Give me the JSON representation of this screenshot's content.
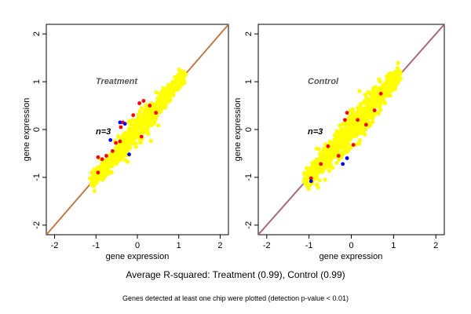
{
  "chart_data": [
    {
      "type": "scatter",
      "title": "Treatment",
      "annotation": "n=3",
      "xlabel": "gene expression",
      "ylabel": "gene expression",
      "xlim": [
        -2.2,
        2.2
      ],
      "ylim": [
        -2.2,
        2.2
      ],
      "xticks": [
        -2,
        -1,
        0,
        1,
        2
      ],
      "yticks": [
        -2,
        -1,
        0,
        1,
        2
      ],
      "grid": false,
      "reference_lines": [
        {
          "intercept": 0,
          "slope": 1,
          "color": "#f08080"
        },
        {
          "intercept": 0,
          "slope": 1,
          "color": "#a07a20"
        }
      ],
      "cloud": {
        "x_range": [
          -1.12,
          1.15
        ],
        "spread": 0.1,
        "color": "#ffff00"
      },
      "outliers": [
        {
          "x": -0.85,
          "y": -0.62,
          "color": "#ff0000"
        },
        {
          "x": -0.75,
          "y": -0.55,
          "color": "#ff0000"
        },
        {
          "x": -0.52,
          "y": -0.28,
          "color": "#ff0000"
        },
        {
          "x": -0.42,
          "y": -0.25,
          "color": "#ff0000"
        },
        {
          "x": -0.4,
          "y": 0.05,
          "color": "#ff0000"
        },
        {
          "x": -0.35,
          "y": 0.15,
          "color": "#ff0000"
        },
        {
          "x": -0.1,
          "y": 0.3,
          "color": "#ff0000"
        },
        {
          "x": 0.15,
          "y": 0.6,
          "color": "#ff0000"
        },
        {
          "x": 0.05,
          "y": 0.55,
          "color": "#ff0000"
        },
        {
          "x": 0.3,
          "y": 0.5,
          "color": "#ff0000"
        },
        {
          "x": 0.1,
          "y": -0.15,
          "color": "#ff0000"
        },
        {
          "x": -0.95,
          "y": -0.9,
          "color": "#ff0000"
        },
        {
          "x": -0.6,
          "y": -0.45,
          "color": "#ff0000"
        },
        {
          "x": 0.45,
          "y": 0.35,
          "color": "#ff0000"
        },
        {
          "x": -0.95,
          "y": -0.58,
          "color": "#ff0000"
        },
        {
          "x": -0.42,
          "y": 0.15,
          "color": "#0000ff"
        },
        {
          "x": -0.3,
          "y": 0.12,
          "color": "#0000ff"
        },
        {
          "x": -0.65,
          "y": -0.22,
          "color": "#0000ff"
        },
        {
          "x": -0.2,
          "y": -0.52,
          "color": "#0000ff"
        }
      ]
    },
    {
      "type": "scatter",
      "title": "Control",
      "annotation": "n=3",
      "xlabel": "gene expression",
      "ylabel": "gene expression",
      "xlim": [
        -2.2,
        2.2
      ],
      "ylim": [
        -2.2,
        2.2
      ],
      "xticks": [
        -2,
        -1,
        0,
        1,
        2
      ],
      "yticks": [
        -2,
        -1,
        0,
        1,
        2
      ],
      "grid": false,
      "reference_lines": [
        {
          "intercept": 0,
          "slope": 1,
          "color": "#5f7fbf"
        },
        {
          "intercept": 0,
          "slope": 1,
          "color": "#d06050"
        }
      ],
      "cloud": {
        "x_range": [
          -1.1,
          1.15
        ],
        "spread": 0.13,
        "color": "#ffff00"
      },
      "outliers": [
        {
          "x": -0.95,
          "y": -1.02,
          "color": "#ff0000"
        },
        {
          "x": -0.72,
          "y": -0.72,
          "color": "#ff0000"
        },
        {
          "x": -0.55,
          "y": -0.35,
          "color": "#ff0000"
        },
        {
          "x": -0.3,
          "y": -0.55,
          "color": "#ff0000"
        },
        {
          "x": -0.15,
          "y": 0.2,
          "color": "#ff0000"
        },
        {
          "x": 0.05,
          "y": -0.32,
          "color": "#ff0000"
        },
        {
          "x": 0.15,
          "y": 0.2,
          "color": "#ff0000"
        },
        {
          "x": 0.35,
          "y": 0.1,
          "color": "#ff0000"
        },
        {
          "x": 0.55,
          "y": 0.4,
          "color": "#ff0000"
        },
        {
          "x": 0.7,
          "y": 0.75,
          "color": "#ff0000"
        },
        {
          "x": -0.1,
          "y": 0.35,
          "color": "#ff0000"
        },
        {
          "x": -0.1,
          "y": -0.6,
          "color": "#0000ff"
        },
        {
          "x": -0.2,
          "y": -0.72,
          "color": "#0000ff"
        },
        {
          "x": -0.95,
          "y": -1.08,
          "color": "#0000ff"
        }
      ]
    }
  ],
  "footer": {
    "r_squared": "Average R-squared: Treatment (0.99), Control (0.99)",
    "note": "Genes detected at least one chip were plotted (detection p-value < 0.01)"
  }
}
